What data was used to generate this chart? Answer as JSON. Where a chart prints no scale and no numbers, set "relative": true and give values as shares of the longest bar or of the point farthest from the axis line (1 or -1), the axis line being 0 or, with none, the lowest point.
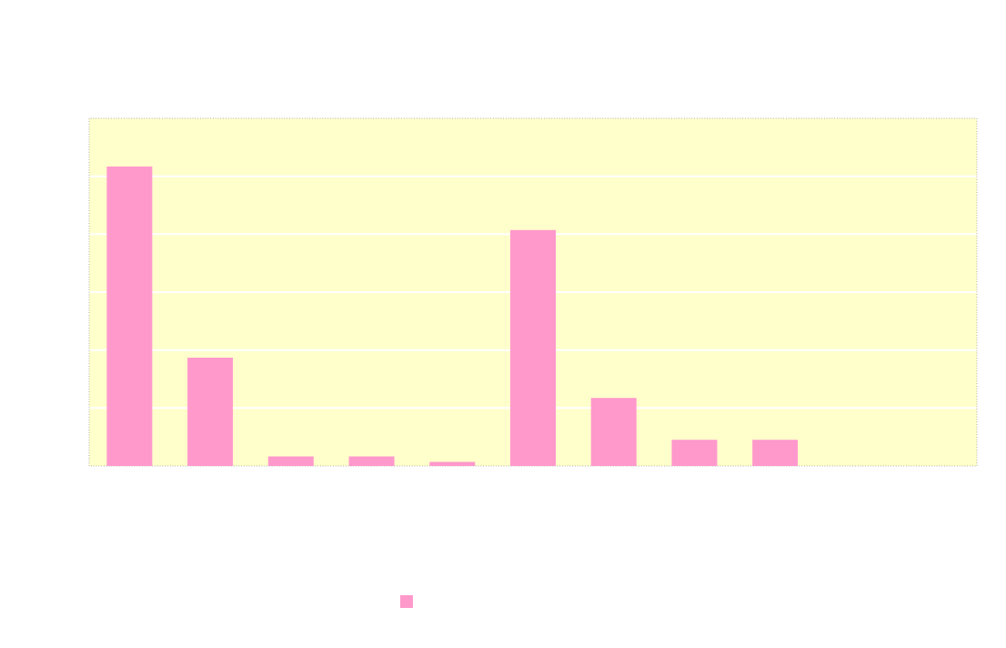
{
  "chart_data": {
    "type": "bar",
    "relative": true,
    "categories": [
      null,
      null,
      null,
      null,
      null,
      null,
      null,
      null,
      null
    ],
    "series": [
      {
        "color": "#ff99cc",
        "values": [
          1,
          0.361,
          0.032,
          0.032,
          0.014,
          0.787,
          0.227,
          0.087,
          0.087
        ]
      }
    ],
    "grid": "y"
  }
}
